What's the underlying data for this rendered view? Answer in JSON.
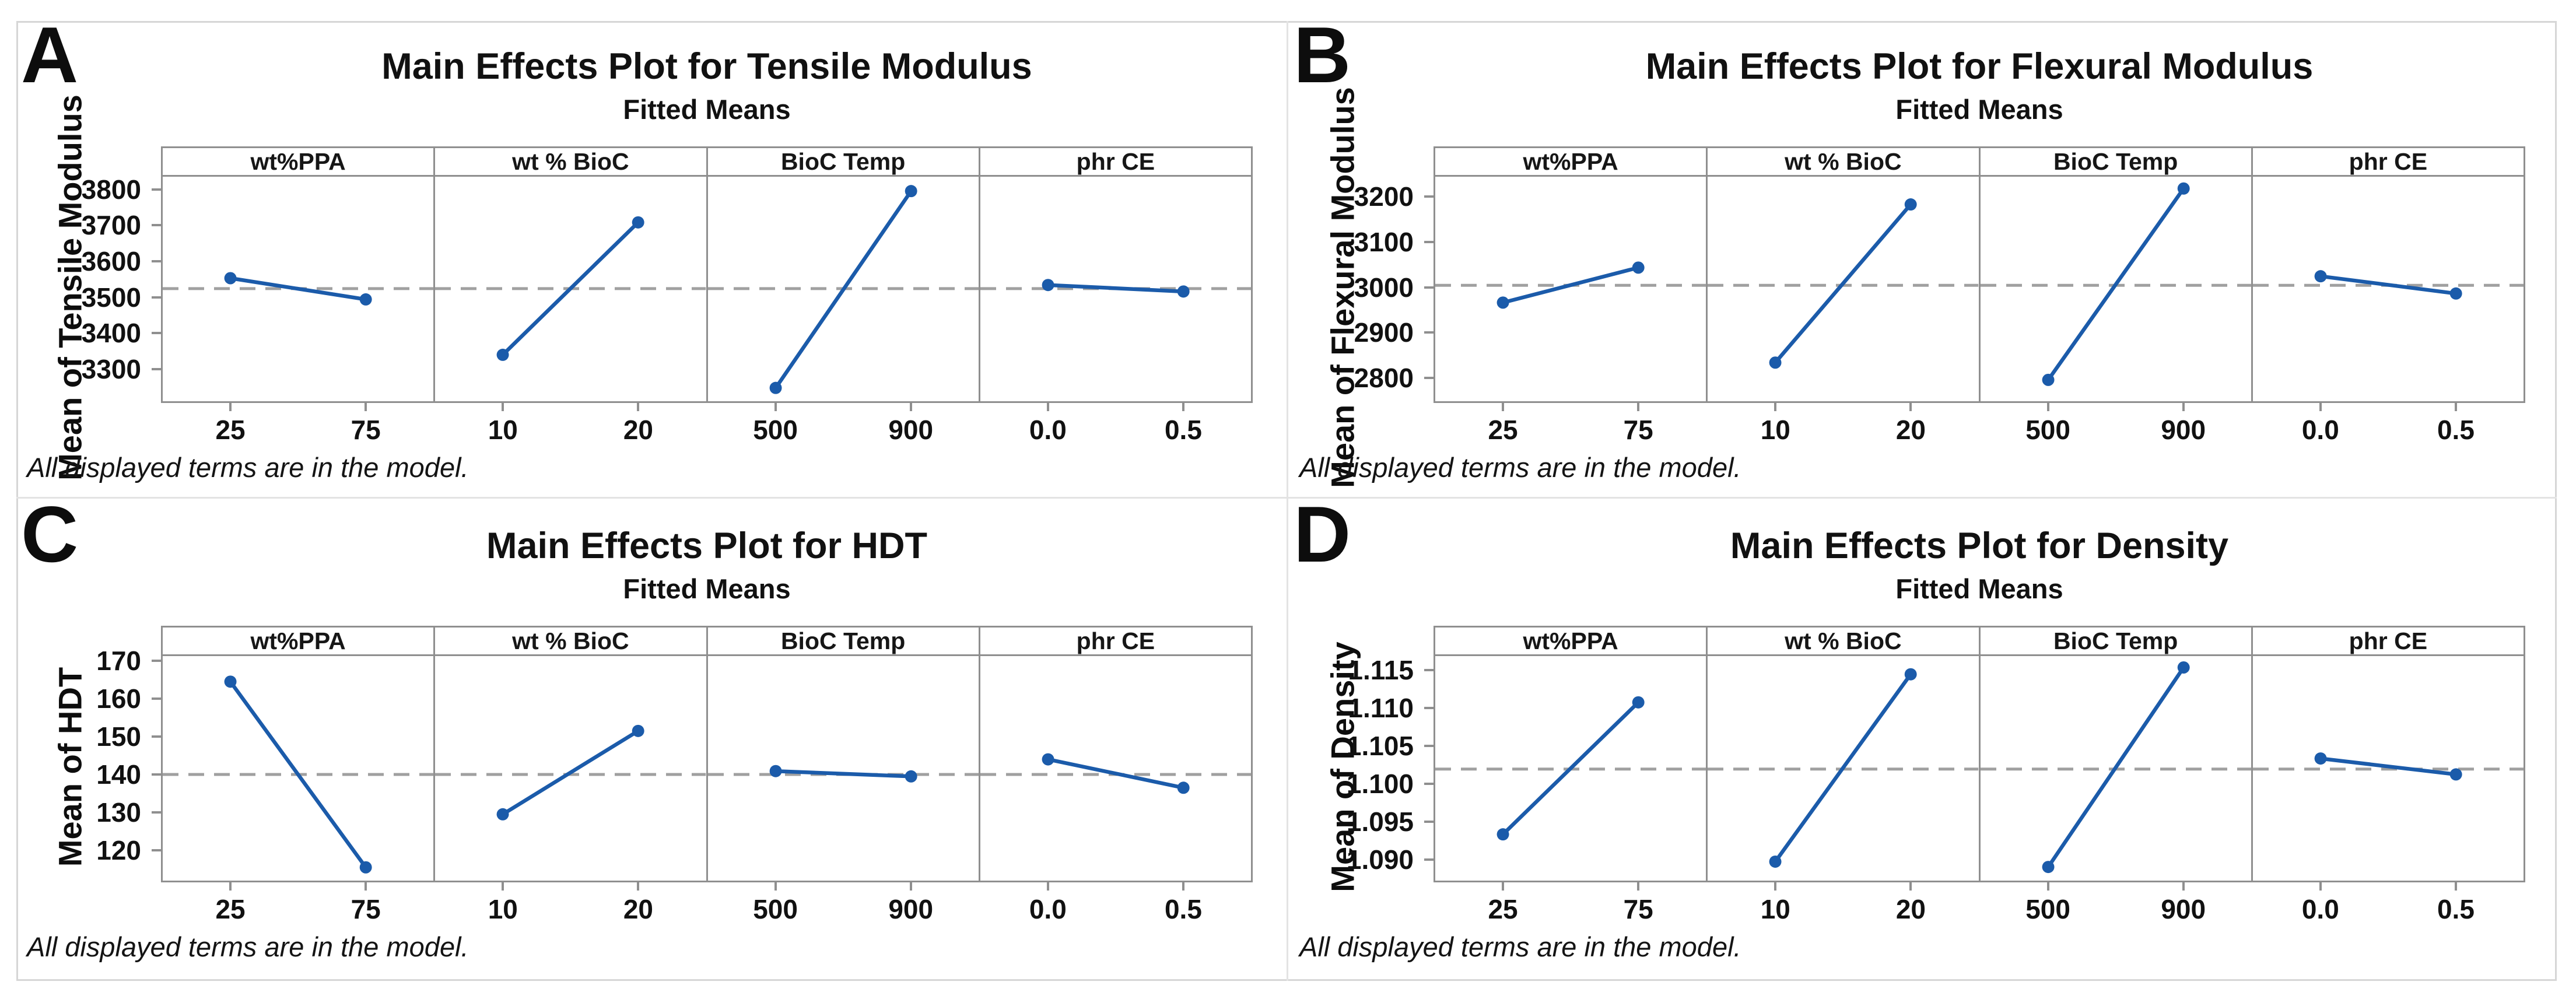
{
  "figure": {
    "footnote": "All displayed terms are in the model.",
    "subtitle": "Fitted Means"
  },
  "colors": {
    "line": "#1b5baa",
    "marker": "#1b5baa",
    "dashed_mean": "#a0a0a0",
    "axis": "#8f8f8f",
    "panel_divider": "#e3e3e3",
    "outer_border": "#d6d6d6",
    "text": "#111111"
  },
  "chart_data": [
    {
      "type": "line",
      "letter": "A",
      "title": "Main Effects Plot for Tensile Modulus",
      "subtitle": "Fitted Means",
      "ylabel": "Mean of Tensile Modulus",
      "footnote": "All displayed terms are in the model.",
      "yticks": [
        "3800",
        "3700",
        "3600",
        "3500",
        "3400",
        "3300"
      ],
      "ylim": [
        3216,
        3840
      ],
      "grand_mean": 3529,
      "legend_position": "none",
      "grid": false,
      "factors": [
        {
          "name": "wt%PPA",
          "levels": [
            "25",
            "75"
          ],
          "means": [
            3558,
            3499
          ]
        },
        {
          "name": "wt % BioC",
          "levels": [
            "10",
            "20"
          ],
          "means": [
            3345,
            3713
          ]
        },
        {
          "name": "BioC Temp",
          "levels": [
            "500",
            "900"
          ],
          "means": [
            3253,
            3800
          ]
        },
        {
          "name": "phr CE",
          "levels": [
            "0.0",
            "0.5"
          ],
          "means": [
            3539,
            3521
          ]
        }
      ]
    },
    {
      "type": "line",
      "letter": "B",
      "title": "Main Effects Plot for Flexural Modulus",
      "subtitle": "Fitted Means",
      "ylabel": "Mean of Flexural Modulus",
      "footnote": "All displayed terms are in the model.",
      "yticks": [
        "3200",
        "3100",
        "3000",
        "2900",
        "2800"
      ],
      "ylim": [
        2753,
        3247
      ],
      "grand_mean": 3008,
      "legend_position": "none",
      "grid": false,
      "factors": [
        {
          "name": "wt%PPA",
          "levels": [
            "25",
            "75"
          ],
          "means": [
            2970,
            3047
          ]
        },
        {
          "name": "wt % BioC",
          "levels": [
            "10",
            "20"
          ],
          "means": [
            2838,
            3186
          ]
        },
        {
          "name": "BioC Temp",
          "levels": [
            "500",
            "900"
          ],
          "means": [
            2800,
            3221
          ]
        },
        {
          "name": "phr CE",
          "levels": [
            "0.0",
            "0.5"
          ],
          "means": [
            3028,
            2990
          ]
        }
      ]
    },
    {
      "type": "line",
      "letter": "C",
      "title": "Main Effects Plot for HDT",
      "subtitle": "Fitted Means",
      "ylabel": "Mean of HDT",
      "footnote": "All displayed terms are in the model.",
      "yticks": [
        "170",
        "160",
        "150",
        "140",
        "130",
        "120"
      ],
      "ylim": [
        112.5,
        171.75
      ],
      "grand_mean": 140.5,
      "legend_position": "none",
      "grid": false,
      "factors": [
        {
          "name": "wt%PPA",
          "levels": [
            "25",
            "75"
          ],
          "means": [
            165,
            116
          ]
        },
        {
          "name": "wt % BioC",
          "levels": [
            "10",
            "20"
          ],
          "means": [
            130,
            152
          ]
        },
        {
          "name": "BioC Temp",
          "levels": [
            "500",
            "900"
          ],
          "means": [
            141.4,
            140
          ]
        },
        {
          "name": "phr CE",
          "levels": [
            "0.0",
            "0.5"
          ],
          "means": [
            144.5,
            137
          ]
        }
      ]
    },
    {
      "type": "line",
      "letter": "D",
      "title": "Main Effects Plot for Density",
      "subtitle": "Fitted Means",
      "ylabel": "Mean of Density",
      "footnote": "All displayed terms are in the model.",
      "yticks": [
        "1.115",
        "1.110",
        "1.105",
        "1.100",
        "1.095",
        "1.090"
      ],
      "ylim": [
        1.0875,
        1.1171
      ],
      "grand_mean": 1.1022,
      "legend_position": "none",
      "grid": false,
      "factors": [
        {
          "name": "wt%PPA",
          "levels": [
            "25",
            "75"
          ],
          "means": [
            1.0936,
            1.111
          ]
        },
        {
          "name": "wt % BioC",
          "levels": [
            "10",
            "20"
          ],
          "means": [
            1.09,
            1.1147
          ]
        },
        {
          "name": "BioC Temp",
          "levels": [
            "500",
            "900"
          ],
          "means": [
            1.0893,
            1.1156
          ]
        },
        {
          "name": "phr CE",
          "levels": [
            "0.0",
            "0.5"
          ],
          "means": [
            1.1036,
            1.1015
          ]
        }
      ]
    }
  ]
}
